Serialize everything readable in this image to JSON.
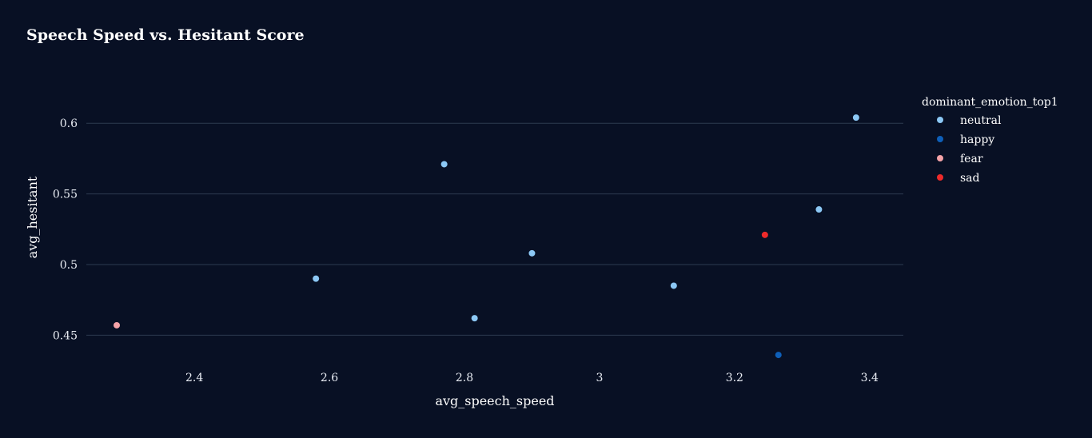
{
  "chart_data": {
    "type": "scatter",
    "title": "Speech Speed vs. Hesitant Score",
    "xlabel": "avg_speech_speed",
    "ylabel": "avg_hesitant",
    "xlim": [
      2.24,
      3.45
    ],
    "ylim": [
      0.427,
      0.625
    ],
    "xticks": [
      2.4,
      2.6,
      2.8,
      3,
      3.2,
      3.4
    ],
    "xtick_labels": [
      "2.4",
      "2.6",
      "2.8",
      "3",
      "3.2",
      "3.4"
    ],
    "yticks": [
      0.45,
      0.5,
      0.55,
      0.6
    ],
    "ytick_labels": [
      "0.45",
      "0.5",
      "0.55",
      "0.6"
    ],
    "grid": "horizontal",
    "legend_title": "dominant_emotion_top1",
    "legend_position": "right",
    "series": [
      {
        "name": "neutral",
        "color": "#8cc8f5",
        "points": [
          {
            "x": 2.58,
            "y": 0.49
          },
          {
            "x": 2.77,
            "y": 0.571
          },
          {
            "x": 2.815,
            "y": 0.462
          },
          {
            "x": 2.9,
            "y": 0.508
          },
          {
            "x": 3.11,
            "y": 0.485
          },
          {
            "x": 3.325,
            "y": 0.539
          },
          {
            "x": 3.38,
            "y": 0.604
          }
        ]
      },
      {
        "name": "happy",
        "color": "#0e5fb8",
        "points": [
          {
            "x": 3.265,
            "y": 0.436
          }
        ]
      },
      {
        "name": "fear",
        "color": "#f5a3a8",
        "points": [
          {
            "x": 2.285,
            "y": 0.457
          }
        ]
      },
      {
        "name": "sad",
        "color": "#ee2a2a",
        "points": [
          {
            "x": 3.245,
            "y": 0.521
          }
        ]
      }
    ]
  }
}
